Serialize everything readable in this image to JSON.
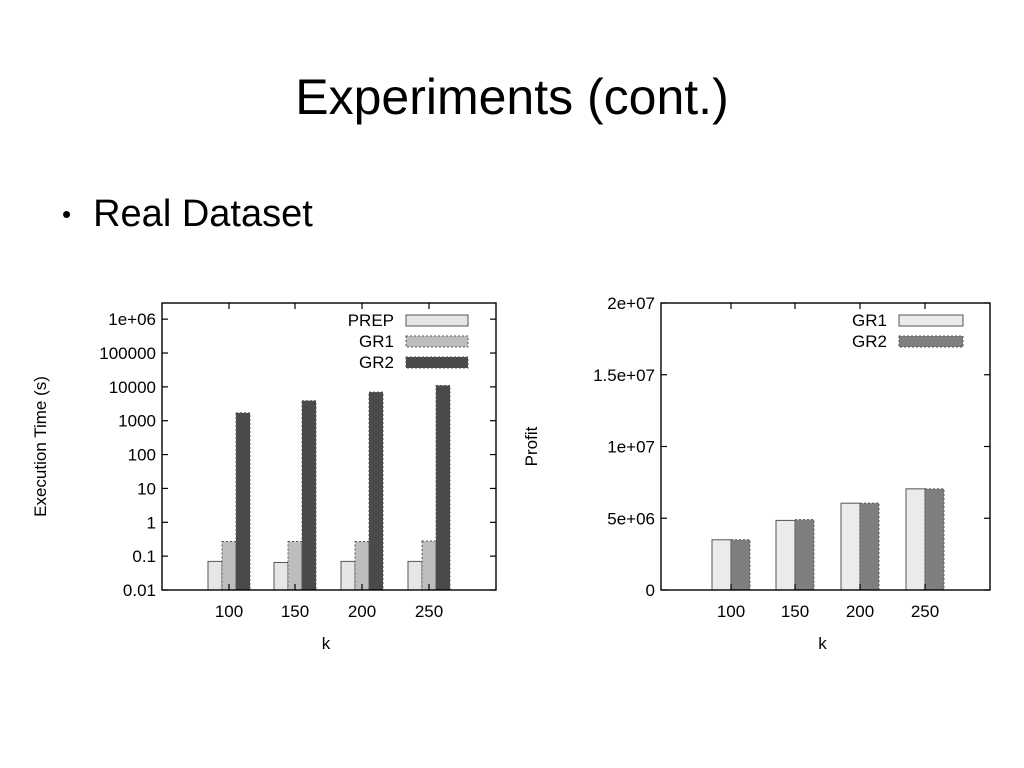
{
  "slide": {
    "title": "Experiments (cont.)",
    "bullet": "Real Dataset"
  },
  "colors": {
    "prep": "#e6e6e6",
    "gr1": "#bdbdbd",
    "gr2": "#4a4a4a",
    "gr1_profit": "#ebebeb",
    "gr2_profit": "#7f7f7f",
    "frame": "#000000"
  },
  "chart_data": [
    {
      "type": "bar",
      "xlabel": "k",
      "ylabel": "Execution Time (s)",
      "yscale": "log",
      "ylim": [
        0.01,
        3000000
      ],
      "yticks": [
        0.01,
        0.1,
        1,
        10,
        100,
        1000,
        10000,
        100000,
        1000000
      ],
      "ytick_labels": [
        "0.01",
        "0.1",
        "1",
        "10",
        "100",
        "1000",
        "10000",
        "100000",
        "1e+06"
      ],
      "categories": [
        "100",
        "150",
        "200",
        "250"
      ],
      "legend_position": "top-right",
      "grid": false,
      "series": [
        {
          "name": "PREP",
          "values": [
            0.07,
            0.065,
            0.07,
            0.07
          ]
        },
        {
          "name": "GR1",
          "values": [
            0.27,
            0.27,
            0.27,
            0.28
          ]
        },
        {
          "name": "GR2",
          "values": [
            1700,
            3900,
            7000,
            11000
          ]
        }
      ]
    },
    {
      "type": "bar",
      "xlabel": "k",
      "ylabel": "Profit",
      "yscale": "linear",
      "ylim": [
        0,
        20000000
      ],
      "yticks": [
        0,
        5000000,
        10000000,
        15000000,
        20000000
      ],
      "ytick_labels": [
        "0",
        "5e+06",
        "1e+07",
        "1.5e+07",
        "2e+07"
      ],
      "categories": [
        "100",
        "150",
        "200",
        "250"
      ],
      "legend_position": "top-right",
      "grid": false,
      "series": [
        {
          "name": "GR1",
          "values": [
            3500000,
            4850000,
            6050000,
            7050000
          ]
        },
        {
          "name": "GR2",
          "values": [
            3500000,
            4900000,
            6050000,
            7050000
          ]
        }
      ]
    }
  ]
}
